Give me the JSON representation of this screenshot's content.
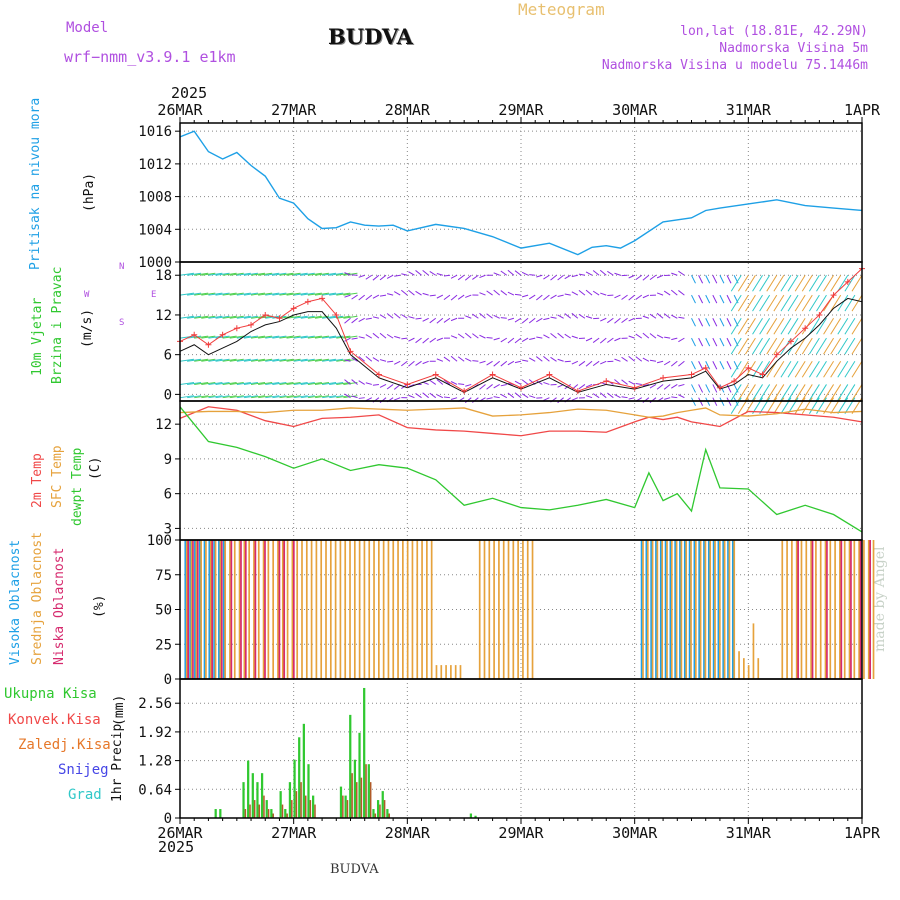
{
  "header": {
    "model_label": "Model",
    "model_name": "wrf−nmm_v3.9.1  e1km",
    "station": "BUDVA",
    "title": "Meteogram",
    "coords": "lon,lat (18.81E, 42.29N)",
    "elevation": "Nadmorska Visina 5m",
    "model_elevation": "Nadmorska Visina u modelu 75.1446m",
    "footer_station": "BUDVA",
    "credit": "made by Angel"
  },
  "colors": {
    "pressure": "#1ea0e6",
    "temp2m": "#f04848",
    "sfc_temp": "#e6a23c",
    "dewpt": "#30c830",
    "high_cloud": "#1ea0e6",
    "mid_cloud": "#e6a23c",
    "low_cloud": "#d62a6e",
    "total_precip": "#30c830",
    "conv_precip": "#f04848",
    "frozen_precip": "#e6782a",
    "snow": "#4646e6",
    "hail": "#30c8c8",
    "wind_purple": "#8a2be2",
    "wind_speed_line": "#f03c3c",
    "title_violet": "#b050e0",
    "title_gold": "#e8c070"
  },
  "time_axis": {
    "year_top": "2025",
    "year_bottom": "2025",
    "labels": [
      "26MAR",
      "27MAR",
      "28MAR",
      "29MAR",
      "30MAR",
      "31MAR",
      "1APR"
    ]
  },
  "chart_data": [
    {
      "type": "line",
      "panel": "pressure",
      "ylabel": [
        "Pritisak na nivou mora",
        "(hPa)"
      ],
      "ylim": [
        1000,
        1017
      ],
      "yticks": [
        "1016",
        "1012",
        "1008",
        "1004",
        "1000"
      ],
      "x_hours": [
        0,
        3,
        6,
        9,
        12,
        15,
        18,
        21,
        24,
        27,
        30,
        33,
        36,
        39,
        42,
        45,
        48,
        54,
        60,
        66,
        72,
        78,
        84,
        87,
        90,
        93,
        96,
        102,
        108,
        111,
        114,
        120,
        126,
        132,
        138,
        144
      ],
      "series": [
        {
          "values": [
            1015.3,
            1016.0,
            1013.5,
            1012.6,
            1013.4,
            1011.8,
            1010.5,
            1007.8,
            1007.2,
            1005.3,
            1004.1,
            1004.2,
            1004.9,
            1004.5,
            1004.4,
            1004.5,
            1003.8,
            1004.6,
            1004.1,
            1003.1,
            1001.7,
            1002.3,
            1000.9,
            1001.8,
            1002.0,
            1001.7,
            1002.6,
            1004.9,
            1005.4,
            1006.3,
            1006.6,
            1007.1,
            1007.6,
            1006.9,
            1006.6,
            1006.3
          ]
        }
      ]
    },
    {
      "type": "line",
      "panel": "wind",
      "ylabel": [
        "10m Vjetar",
        "Brzina i Pravac",
        "(m/s)"
      ],
      "ylim": [
        -1,
        20
      ],
      "yticks": [
        "18",
        "12",
        "6",
        "0"
      ],
      "compass": [
        "N",
        "E",
        "S",
        "W"
      ],
      "x_hours": [
        0,
        3,
        6,
        9,
        12,
        15,
        18,
        21,
        24,
        27,
        30,
        33,
        36,
        42,
        48,
        54,
        60,
        66,
        72,
        78,
        84,
        90,
        96,
        102,
        108,
        111,
        114,
        117,
        120,
        123,
        126,
        129,
        132,
        135,
        138,
        141,
        144
      ],
      "series": [
        {
          "values": [
            8.0,
            9.0,
            7.5,
            9.0,
            10.0,
            10.5,
            12.0,
            11.5,
            13.0,
            14.0,
            14.5,
            12.0,
            6.5,
            3.0,
            1.5,
            3.0,
            0.5,
            3.0,
            1.0,
            3.0,
            0.5,
            2.0,
            1.0,
            2.5,
            3.0,
            4.0,
            1.0,
            2.0,
            4.0,
            3.0,
            6.0,
            8.0,
            10.0,
            12.0,
            15.0,
            17.0,
            19.0
          ]
        },
        {
          "values": [
            6.5,
            7.5,
            6.0,
            7.0,
            8.0,
            9.5,
            10.5,
            11.0,
            12.0,
            12.5,
            12.5,
            10.0,
            6.0,
            2.5,
            1.0,
            2.5,
            0.3,
            2.5,
            0.8,
            2.5,
            0.3,
            1.5,
            0.8,
            2.0,
            2.5,
            3.5,
            0.8,
            1.5,
            3.0,
            2.5,
            5.0,
            7.0,
            8.5,
            10.5,
            13.0,
            14.5,
            14.0
          ]
        }
      ]
    },
    {
      "type": "line",
      "panel": "temperature",
      "ylabel": [
        "2m Temp",
        "SFC Temp",
        "dewpt Temp",
        "(C)"
      ],
      "ylim": [
        2,
        14
      ],
      "yticks": [
        "12",
        "9",
        "6",
        "3"
      ],
      "x_hours": [
        0,
        6,
        12,
        18,
        24,
        30,
        36,
        42,
        48,
        54,
        60,
        66,
        72,
        78,
        84,
        90,
        96,
        99,
        102,
        105,
        108,
        111,
        114,
        120,
        126,
        132,
        138,
        144
      ],
      "series": [
        {
          "name": "2m Temp",
          "values": [
            12.5,
            13.5,
            13.2,
            12.3,
            11.8,
            12.5,
            12.6,
            12.8,
            11.7,
            11.5,
            11.4,
            11.2,
            11.0,
            11.4,
            11.4,
            11.3,
            12.2,
            12.6,
            12.4,
            12.6,
            12.2,
            12.0,
            11.8,
            13.1,
            13.0,
            12.8,
            12.6,
            12.2
          ]
        },
        {
          "name": "SFC Temp",
          "values": [
            13.0,
            13.1,
            13.1,
            13.0,
            13.2,
            13.2,
            13.4,
            13.3,
            13.2,
            13.3,
            13.4,
            12.7,
            12.8,
            13.0,
            13.3,
            13.2,
            12.8,
            12.6,
            12.7,
            13.0,
            13.2,
            13.4,
            12.8,
            12.7,
            12.9,
            13.3,
            13.0,
            13.1
          ]
        },
        {
          "name": "dewpt Temp",
          "values": [
            13.5,
            10.5,
            10.0,
            9.2,
            8.2,
            9.0,
            8.0,
            8.5,
            8.2,
            7.2,
            5.0,
            5.6,
            4.8,
            4.6,
            5.0,
            5.5,
            4.8,
            7.8,
            5.4,
            6.0,
            4.5,
            9.8,
            6.5,
            6.4,
            4.2,
            5.0,
            4.2,
            2.7
          ]
        }
      ]
    },
    {
      "type": "bar",
      "panel": "cloud",
      "ylabel": [
        "Visoka Oblacnost",
        "Srednja Oblacnost",
        "Niska Oblacnost",
        "(%)"
      ],
      "ylim": [
        0,
        100
      ],
      "yticks": [
        "100",
        "75",
        "50",
        "25",
        "0"
      ],
      "series": [
        {
          "name": "Visoka Oblacnost",
          "values": [
            0,
            100,
            100,
            100,
            100,
            100,
            100,
            100,
            100,
            100,
            0,
            0,
            0,
            0,
            0,
            0,
            0,
            0,
            0,
            0,
            0,
            0,
            0,
            0,
            0,
            0,
            0,
            0,
            0,
            0,
            0,
            0,
            0,
            0,
            0,
            0,
            0,
            0,
            0,
            0,
            0,
            0,
            0,
            0,
            0,
            0,
            0,
            0,
            0,
            0,
            0,
            0,
            0,
            0,
            0,
            0,
            0,
            0,
            0,
            0,
            0,
            0,
            0,
            0,
            0,
            0,
            0,
            0,
            0,
            0,
            0,
            0,
            0,
            0,
            0,
            0,
            0,
            0,
            0,
            0,
            0,
            0,
            0,
            0,
            0,
            0,
            0,
            0,
            0,
            0,
            0,
            0,
            0,
            0,
            0,
            0,
            100,
            100,
            100,
            100,
            100,
            100,
            100,
            100,
            100,
            100,
            100,
            100,
            100,
            100,
            100,
            100,
            100,
            100,
            100,
            100,
            0,
            0,
            0,
            0,
            0,
            0,
            0,
            0,
            0,
            0,
            0,
            0,
            0,
            0,
            0,
            0,
            0,
            0,
            0,
            0,
            0,
            0,
            0,
            0,
            0,
            0
          ]
        },
        {
          "name": "Srednja Oblacnost",
          "values": [
            0,
            100,
            100,
            100,
            100,
            100,
            100,
            100,
            100,
            100,
            100,
            100,
            100,
            100,
            100,
            100,
            100,
            100,
            100,
            100,
            100,
            100,
            100,
            100,
            100,
            100,
            100,
            100,
            100,
            100,
            100,
            100,
            100,
            100,
            100,
            100,
            100,
            100,
            100,
            100,
            100,
            100,
            100,
            100,
            100,
            100,
            100,
            100,
            100,
            100,
            100,
            100,
            100,
            10,
            10,
            10,
            10,
            10,
            10,
            0,
            0,
            0,
            100,
            100,
            100,
            100,
            100,
            100,
            100,
            100,
            100,
            100,
            100,
            100,
            0,
            0,
            0,
            0,
            0,
            0,
            0,
            0,
            0,
            0,
            0,
            0,
            0,
            0,
            0,
            0,
            0,
            0,
            0,
            0,
            0,
            0,
            100,
            100,
            100,
            100,
            100,
            100,
            100,
            100,
            100,
            100,
            100,
            100,
            100,
            100,
            100,
            100,
            100,
            100,
            100,
            100,
            20,
            15,
            10,
            40,
            15,
            0,
            0,
            0,
            0,
            100,
            100,
            100,
            100,
            100,
            100,
            100,
            100,
            100,
            100,
            100,
            100,
            100,
            100,
            100,
            100,
            100,
            100,
            100,
            100
          ]
        },
        {
          "name": "Niska Oblacnost",
          "values": [
            0,
            100,
            100,
            100,
            0,
            0,
            100,
            0,
            100,
            0,
            100,
            0,
            100,
            100,
            0,
            100,
            0,
            100,
            0,
            0,
            100,
            100,
            0,
            100,
            0,
            0,
            0,
            0,
            0,
            0,
            0,
            0,
            0,
            0,
            0,
            0,
            0,
            0,
            0,
            0,
            0,
            0,
            0,
            0,
            0,
            0,
            0,
            0,
            0,
            0,
            0,
            0,
            0,
            0,
            0,
            0,
            0,
            0,
            0,
            0,
            0,
            0,
            0,
            0,
            0,
            0,
            0,
            0,
            0,
            0,
            0,
            0,
            0,
            0,
            0,
            0,
            0,
            0,
            0,
            0,
            0,
            0,
            0,
            0,
            0,
            0,
            0,
            0,
            0,
            0,
            0,
            0,
            0,
            0,
            0,
            0,
            0,
            0,
            0,
            0,
            0,
            0,
            0,
            0,
            0,
            0,
            0,
            0,
            0,
            0,
            0,
            0,
            0,
            0,
            0,
            0,
            0,
            0,
            0,
            0,
            0,
            0,
            0,
            0,
            0,
            0,
            0,
            0,
            100,
            0,
            0,
            100,
            0,
            0,
            100,
            0,
            0,
            100,
            0,
            100,
            0,
            100,
            0,
            100,
            0,
            0
          ]
        }
      ]
    },
    {
      "type": "bar",
      "panel": "precip",
      "ylabel": [
        "1hr Precip",
        "(mm)"
      ],
      "ylim": [
        0,
        3.1
      ],
      "yticks": [
        "2.56",
        "1.92",
        "1.28",
        "0.64",
        "0"
      ],
      "legend": [
        "Ukupna Kisa",
        "Konvek.Kisa",
        "Zaledj.Kisa",
        "Snijeg",
        "Grad"
      ],
      "series": [
        {
          "name": "Ukupna Kisa",
          "values": [
            0,
            0,
            0,
            0,
            0.2,
            0.2,
            0,
            0,
            0,
            0,
            0.8,
            1.28,
            1.0,
            0.8,
            1.0,
            0.4,
            0.2,
            0,
            0.6,
            0.2,
            0.8,
            1.3,
            1.8,
            2.1,
            1.2,
            0.5,
            0,
            0,
            0,
            0,
            0,
            0.7,
            0.5,
            2.3,
            1.3,
            1.9,
            2.9,
            1.2,
            0.2,
            0.4,
            0.6,
            0.2,
            0,
            0,
            0,
            0,
            0,
            0,
            0,
            0,
            0,
            0,
            0,
            0,
            0,
            0,
            0,
            0,
            0,
            0.1,
            0.05,
            0,
            0,
            0,
            0,
            0,
            0
          ]
        },
        {
          "name": "Konvek.Kisa",
          "values": [
            0,
            0,
            0,
            0,
            0,
            0,
            0,
            0,
            0,
            0,
            0.2,
            0.3,
            0.4,
            0.3,
            0.5,
            0.2,
            0.1,
            0,
            0.3,
            0.1,
            0.4,
            0.6,
            0.8,
            0.5,
            0.4,
            0.3,
            0,
            0,
            0,
            0,
            0,
            0.5,
            0.4,
            1.0,
            0.8,
            0.9,
            1.2,
            0.8,
            0.1,
            0.3,
            0.4,
            0.1,
            0,
            0,
            0,
            0,
            0,
            0,
            0,
            0,
            0,
            0,
            0,
            0,
            0,
            0,
            0,
            0,
            0,
            0,
            0,
            0,
            0,
            0,
            0,
            0,
            0
          ]
        }
      ]
    }
  ]
}
